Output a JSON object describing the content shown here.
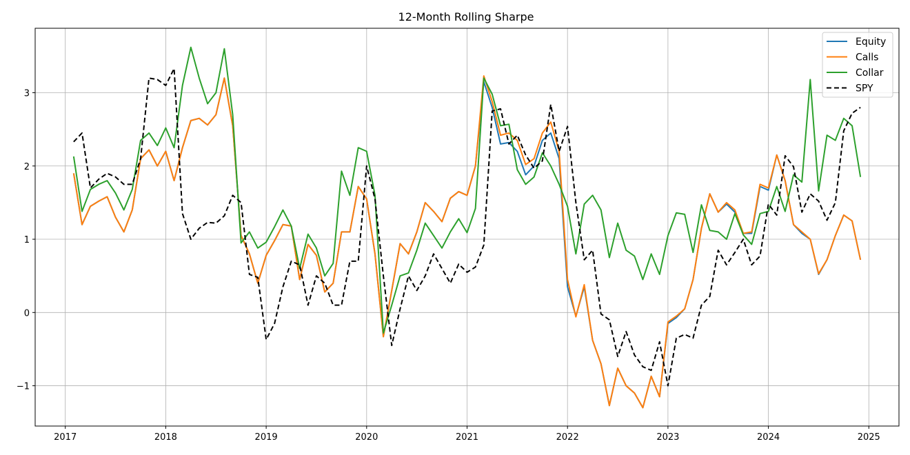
{
  "chart_data": {
    "type": "line",
    "title": "12-Month Rolling Sharpe",
    "xlabel": "",
    "ylabel": "",
    "xlim": [
      2016.7,
      2025.3
    ],
    "ylim": [
      -1.55,
      3.88
    ],
    "x_ticks": [
      2017,
      2018,
      2019,
      2020,
      2021,
      2022,
      2023,
      2024,
      2025
    ],
    "x_tick_labels": [
      "2017",
      "2018",
      "2019",
      "2020",
      "2021",
      "2022",
      "2023",
      "2024",
      "2025"
    ],
    "y_ticks": [
      -1,
      0,
      1,
      2,
      3
    ],
    "y_tick_labels": [
      "−1",
      "0",
      "1",
      "2",
      "3"
    ],
    "grid": true,
    "legend_position": "top-right",
    "x_start": "2017-02",
    "x_step": "1 month",
    "x_end": "2024-12",
    "series": [
      {
        "name": "Equity",
        "color": "#1f77b4",
        "style": "solid",
        "values": [
          1.9,
          1.2,
          1.45,
          1.52,
          1.58,
          1.3,
          1.1,
          1.4,
          2.1,
          2.22,
          2.0,
          2.2,
          1.8,
          2.25,
          2.62,
          2.65,
          2.56,
          2.7,
          3.2,
          2.55,
          1.05,
          0.8,
          0.4,
          0.78,
          0.98,
          1.2,
          1.18,
          0.45,
          0.93,
          0.78,
          0.28,
          0.4,
          1.1,
          1.1,
          1.72,
          1.55,
          0.8,
          -0.33,
          0.3,
          0.94,
          0.8,
          1.1,
          1.5,
          1.38,
          1.24,
          1.56,
          1.65,
          1.6,
          2.0,
          3.15,
          2.8,
          2.3,
          2.32,
          2.2,
          1.88,
          2.0,
          2.35,
          2.45,
          2.1,
          0.35,
          -0.05,
          0.35,
          -0.38,
          -0.7,
          -1.27,
          -0.76,
          -1.0,
          -1.1,
          -1.3,
          -0.87,
          -1.15,
          -0.15,
          -0.07,
          0.05,
          0.45,
          1.15,
          1.62,
          1.37,
          1.48,
          1.37,
          1.08,
          1.08,
          1.72,
          1.67,
          2.15,
          1.8,
          1.2,
          1.08,
          1.0,
          0.52,
          0.72,
          1.05,
          1.33,
          1.25,
          0.72
        ]
      },
      {
        "name": "Calls",
        "color": "#ff7f0e",
        "style": "solid",
        "values": [
          1.9,
          1.2,
          1.45,
          1.52,
          1.58,
          1.3,
          1.1,
          1.4,
          2.1,
          2.22,
          2.0,
          2.2,
          1.8,
          2.25,
          2.62,
          2.65,
          2.56,
          2.7,
          3.2,
          2.55,
          1.05,
          0.8,
          0.4,
          0.78,
          0.98,
          1.2,
          1.18,
          0.45,
          0.93,
          0.78,
          0.28,
          0.4,
          1.1,
          1.1,
          1.72,
          1.55,
          0.8,
          -0.33,
          0.3,
          0.94,
          0.8,
          1.1,
          1.5,
          1.38,
          1.24,
          1.56,
          1.65,
          1.6,
          2.0,
          3.23,
          2.88,
          2.42,
          2.45,
          2.35,
          2.02,
          2.1,
          2.45,
          2.6,
          2.2,
          0.45,
          -0.06,
          0.38,
          -0.38,
          -0.7,
          -1.27,
          -0.76,
          -1.0,
          -1.1,
          -1.3,
          -0.87,
          -1.15,
          -0.13,
          -0.05,
          0.05,
          0.45,
          1.15,
          1.62,
          1.37,
          1.5,
          1.4,
          1.08,
          1.1,
          1.75,
          1.7,
          2.15,
          1.8,
          1.2,
          1.1,
          1.0,
          0.53,
          0.72,
          1.05,
          1.33,
          1.25,
          0.72
        ]
      },
      {
        "name": "Collar",
        "color": "#2ca02c",
        "style": "solid",
        "values": [
          2.13,
          1.38,
          1.68,
          1.75,
          1.8,
          1.63,
          1.4,
          1.68,
          2.35,
          2.45,
          2.28,
          2.52,
          2.25,
          3.1,
          3.62,
          3.2,
          2.85,
          3.0,
          3.6,
          2.7,
          0.95,
          1.1,
          0.88,
          0.96,
          1.17,
          1.4,
          1.18,
          0.6,
          1.07,
          0.88,
          0.5,
          0.67,
          1.93,
          1.6,
          2.25,
          2.2,
          1.6,
          -0.28,
          0.1,
          0.5,
          0.54,
          0.85,
          1.22,
          1.05,
          0.88,
          1.1,
          1.28,
          1.09,
          1.42,
          3.2,
          2.98,
          2.55,
          2.57,
          1.95,
          1.75,
          1.85,
          2.18,
          2.0,
          1.75,
          1.45,
          0.8,
          1.48,
          1.6,
          1.4,
          0.75,
          1.22,
          0.85,
          0.77,
          0.45,
          0.8,
          0.52,
          1.05,
          1.36,
          1.34,
          0.82,
          1.47,
          1.12,
          1.1,
          1.0,
          1.35,
          1.06,
          0.93,
          1.35,
          1.38,
          1.72,
          1.38,
          1.88,
          1.78,
          3.18,
          1.66,
          2.42,
          2.35,
          2.65,
          2.55,
          1.85
        ]
      },
      {
        "name": "SPY",
        "color": "#000000",
        "style": "dashed",
        "values": [
          2.33,
          2.45,
          1.7,
          1.82,
          1.9,
          1.85,
          1.75,
          1.75,
          2.1,
          3.2,
          3.18,
          3.1,
          3.33,
          1.35,
          1.0,
          1.15,
          1.23,
          1.22,
          1.32,
          1.6,
          1.5,
          0.52,
          0.48,
          -0.37,
          -0.15,
          0.35,
          0.7,
          0.65,
          0.1,
          0.5,
          0.4,
          0.1,
          0.1,
          0.7,
          0.7,
          2.0,
          1.55,
          0.5,
          -0.45,
          0.05,
          0.5,
          0.3,
          0.5,
          0.8,
          0.6,
          0.4,
          0.66,
          0.55,
          0.62,
          0.92,
          2.75,
          2.78,
          2.3,
          2.42,
          2.15,
          1.97,
          2.07,
          2.84,
          2.2,
          2.54,
          1.5,
          0.72,
          0.85,
          -0.02,
          -0.1,
          -0.6,
          -0.26,
          -0.58,
          -0.74,
          -0.79,
          -0.4,
          -1.0,
          -0.35,
          -0.3,
          -0.35,
          0.1,
          0.22,
          0.85,
          0.65,
          0.82,
          1.0,
          0.65,
          0.77,
          1.48,
          1.33,
          2.14,
          1.99,
          1.37,
          1.62,
          1.52,
          1.26,
          1.5,
          2.48,
          2.72,
          2.8
        ]
      }
    ]
  }
}
